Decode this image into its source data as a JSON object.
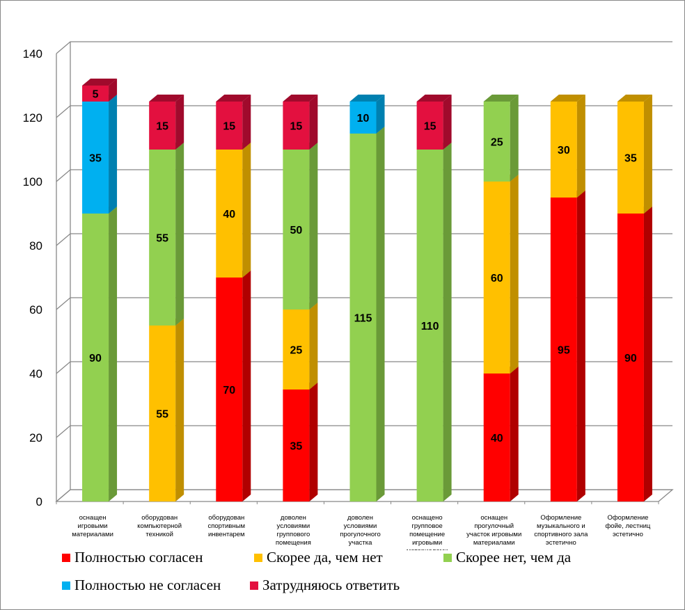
{
  "chart_data": {
    "type": "bar",
    "stacked": true,
    "three_d": true,
    "title": "",
    "xlabel": "",
    "ylabel": "",
    "ylim": [
      0,
      140
    ],
    "yticks": [
      0,
      20,
      40,
      60,
      80,
      100,
      120,
      140
    ],
    "grid": true,
    "legend_placement": "bottom",
    "categories": [
      [
        "оснащен",
        "игровыми",
        "материалами"
      ],
      [
        "оборудован",
        "компьютерной",
        "техникой"
      ],
      [
        "оборудован",
        "спортивным",
        "инвентарем"
      ],
      [
        "доволен",
        "условиями",
        "группового",
        "помещения"
      ],
      [
        "доволен",
        "условиями",
        "прогулочного",
        "участка"
      ],
      [
        "оснащено",
        "групповое",
        "помещение",
        "игровыми",
        "материалами"
      ],
      [
        "оснащен",
        "прогулочный",
        "участок игровыми",
        "материалами"
      ],
      [
        "Оформление",
        "музыкального  и",
        "спортивного   зала",
        "эстетично"
      ],
      [
        "Оформление",
        "фойе,  лестниц",
        "эстетично"
      ]
    ],
    "series": [
      {
        "name": "Полностью согласен",
        "color": "#FF0000",
        "side": "#B00000",
        "values": [
          0,
          0,
          70,
          35,
          0,
          0,
          40,
          95,
          90
        ]
      },
      {
        "name": "Скорее да, чем нет",
        "color": "#FFC000",
        "side": "#C08F00",
        "values": [
          0,
          55,
          40,
          25,
          0,
          0,
          60,
          30,
          35
        ]
      },
      {
        "name": "Скорее нет, чем да",
        "color": "#92D050",
        "side": "#6A9A38",
        "values": [
          90,
          55,
          0,
          50,
          115,
          110,
          25,
          0,
          0
        ]
      },
      {
        "name": "Полностью не согласен",
        "color": "#00B0F0",
        "side": "#0080B0",
        "values": [
          35,
          0,
          0,
          0,
          10,
          0,
          0,
          0,
          0
        ]
      },
      {
        "name": "Затрудняюсь ответить",
        "color": "#E3103F",
        "side": "#A00A2C",
        "values": [
          5,
          15,
          15,
          15,
          0,
          15,
          0,
          0,
          0
        ]
      }
    ]
  }
}
